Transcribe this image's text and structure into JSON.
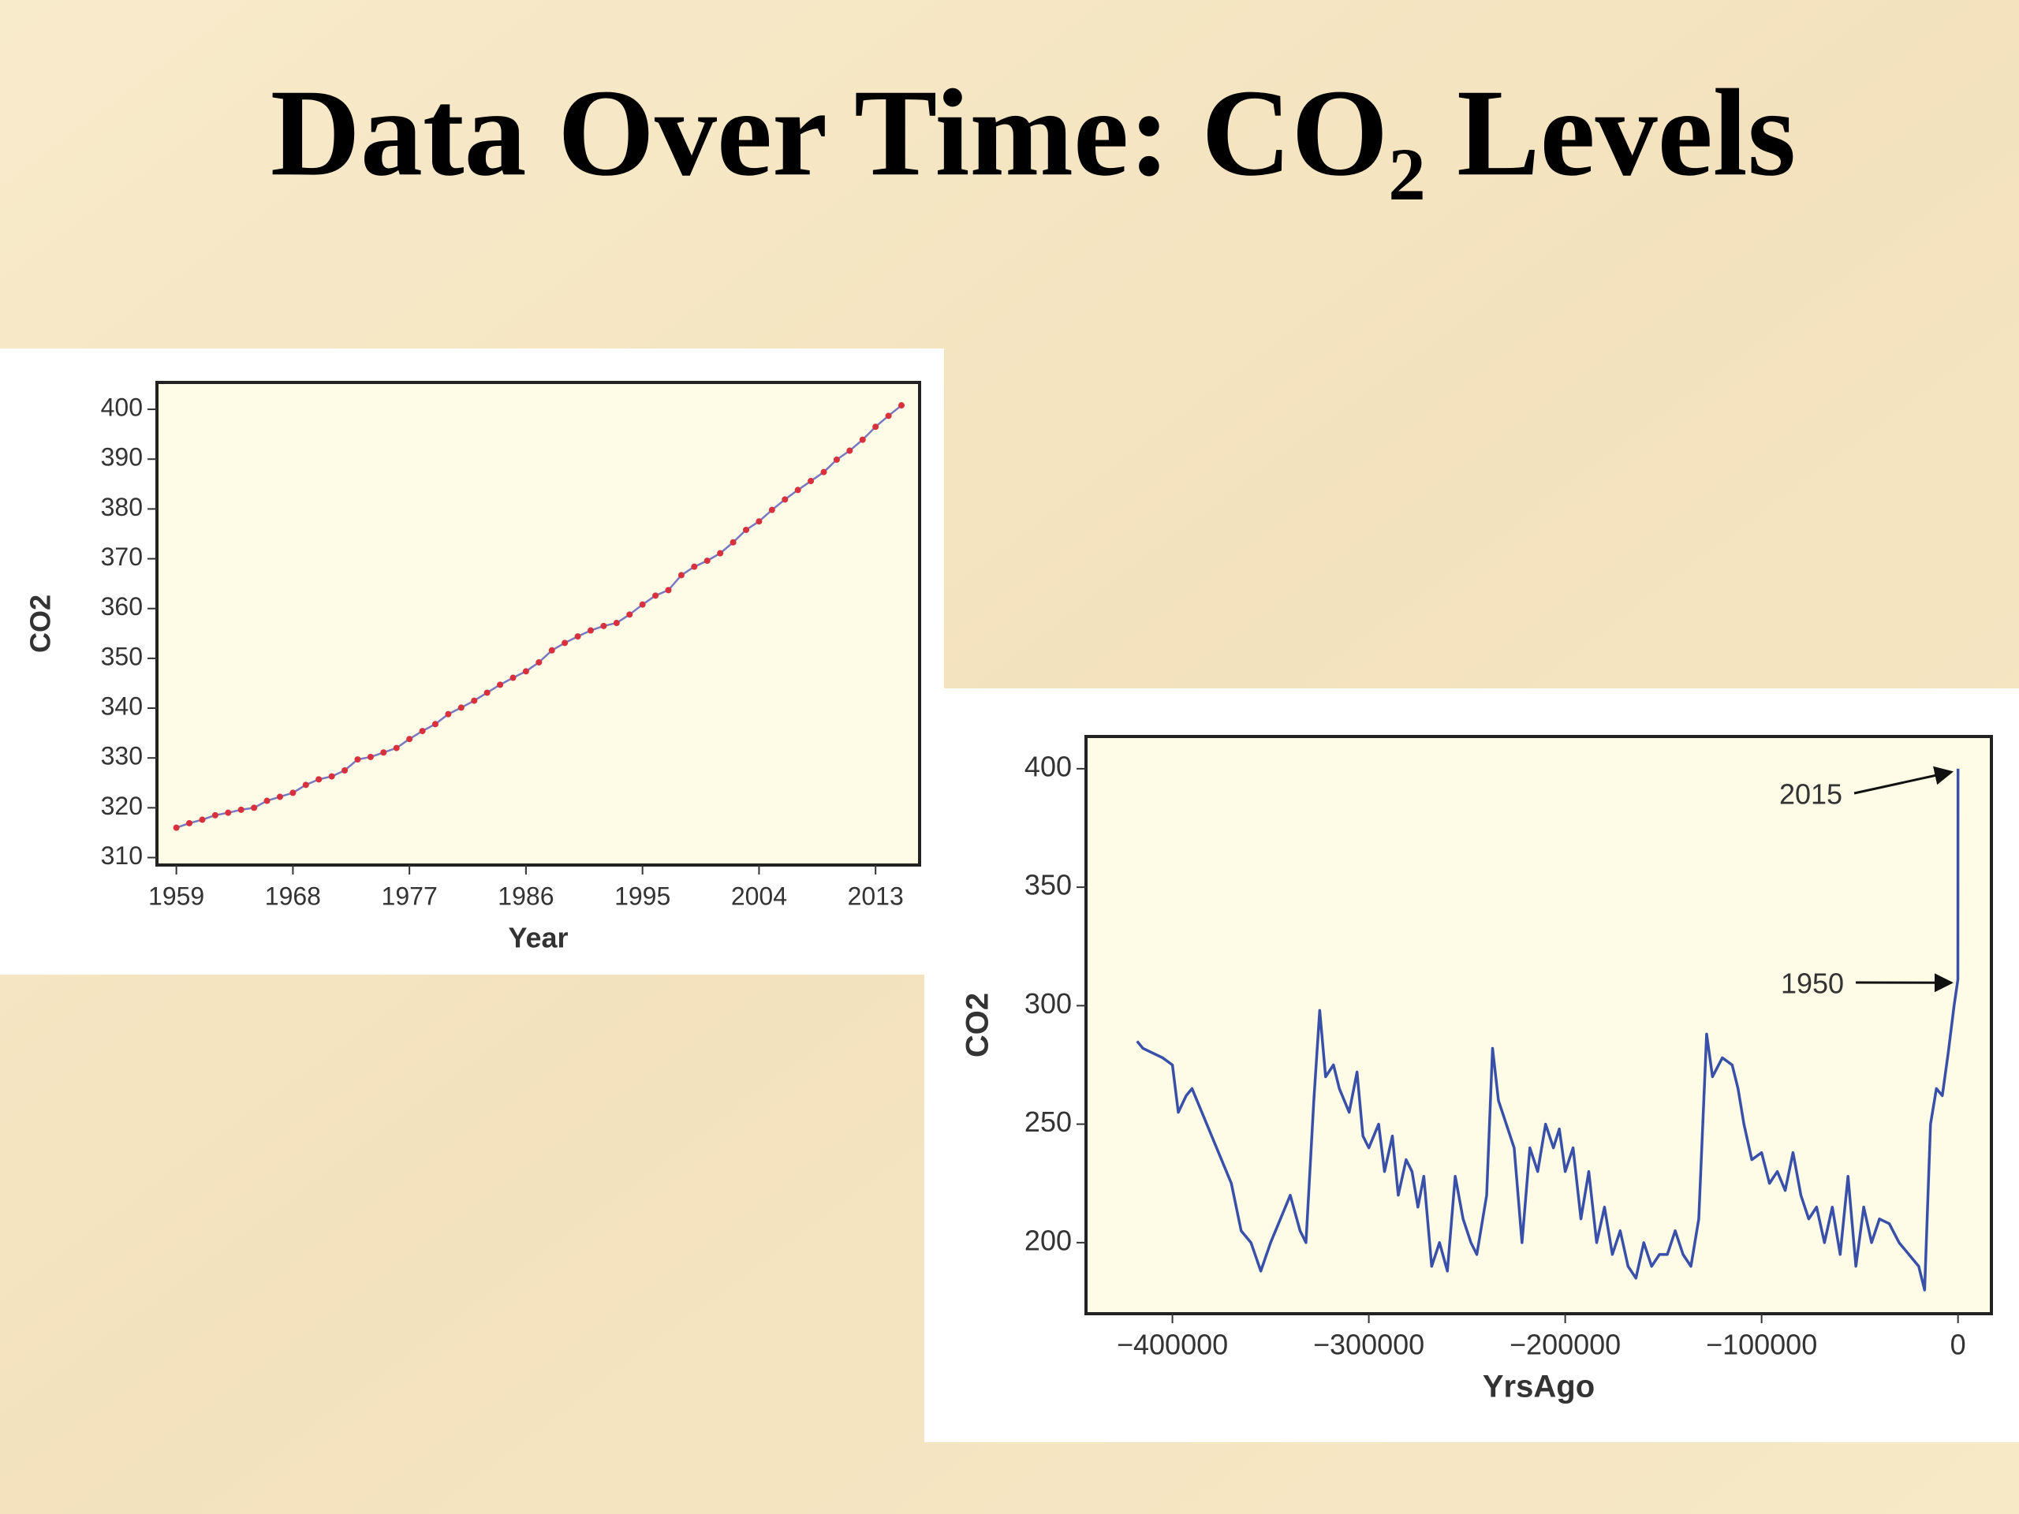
{
  "slide_title": "Data Over Time:  CO₂ Levels",
  "chart_data": [
    {
      "type": "line",
      "x_label": "Year",
      "y_label": "CO2",
      "x": [
        1959,
        1960,
        1961,
        1962,
        1963,
        1964,
        1965,
        1966,
        1967,
        1968,
        1969,
        1970,
        1971,
        1972,
        1973,
        1974,
        1975,
        1976,
        1977,
        1978,
        1979,
        1980,
        1981,
        1982,
        1983,
        1984,
        1985,
        1986,
        1987,
        1988,
        1989,
        1990,
        1991,
        1992,
        1993,
        1994,
        1995,
        1996,
        1997,
        1998,
        1999,
        2000,
        2001,
        2002,
        2003,
        2004,
        2005,
        2006,
        2007,
        2008,
        2009,
        2010,
        2011,
        2012,
        2013,
        2014,
        2015
      ],
      "values": [
        316.0,
        316.9,
        317.6,
        318.5,
        319.0,
        319.6,
        320.0,
        321.4,
        322.2,
        323.0,
        324.6,
        325.7,
        326.3,
        327.5,
        329.7,
        330.2,
        331.1,
        332.0,
        333.8,
        335.4,
        336.8,
        338.8,
        340.1,
        341.5,
        343.1,
        344.7,
        346.1,
        347.4,
        349.2,
        351.6,
        353.1,
        354.4,
        355.6,
        356.5,
        357.1,
        358.8,
        360.8,
        362.6,
        363.7,
        366.7,
        368.4,
        369.6,
        371.1,
        373.3,
        375.8,
        377.5,
        379.8,
        381.9,
        383.8,
        385.6,
        387.4,
        389.9,
        391.7,
        393.9,
        396.5,
        398.7,
        400.8
      ],
      "color": "#7a78c0",
      "marker_color": "#d8303c",
      "xlim": [
        1957.5,
        2016.4
      ],
      "ylim": [
        308.5,
        405.4
      ],
      "xticks": [
        1959,
        1968,
        1977,
        1986,
        1995,
        2004,
        2013
      ],
      "yticks": [
        310,
        320,
        330,
        340,
        350,
        360,
        370,
        380,
        390,
        400
      ]
    },
    {
      "type": "line",
      "x_label": "YrsAgo",
      "y_label": "CO2",
      "x": [
        -418000,
        -415000,
        -410000,
        -405000,
        -400000,
        -397000,
        -393000,
        -390000,
        -385000,
        -380000,
        -375000,
        -370000,
        -365000,
        -360000,
        -355000,
        -350000,
        -345000,
        -340000,
        -335000,
        -332000,
        -328000,
        -325000,
        -322000,
        -318000,
        -315000,
        -310000,
        -306000,
        -303000,
        -300000,
        -295000,
        -292000,
        -288000,
        -285000,
        -281000,
        -278000,
        -275000,
        -272000,
        -268000,
        -264000,
        -260000,
        -256000,
        -252000,
        -248000,
        -245000,
        -240000,
        -237000,
        -234000,
        -230000,
        -226000,
        -222000,
        -218000,
        -214000,
        -210000,
        -206000,
        -203000,
        -200000,
        -196000,
        -192000,
        -188000,
        -184000,
        -180000,
        -176000,
        -172000,
        -168000,
        -164000,
        -160000,
        -156000,
        -152000,
        -148000,
        -144000,
        -140000,
        -136000,
        -132000,
        -128000,
        -125000,
        -120000,
        -115000,
        -112000,
        -109000,
        -105000,
        -100000,
        -96000,
        -92000,
        -88000,
        -84000,
        -80000,
        -76000,
        -72000,
        -68000,
        -64000,
        -60000,
        -56000,
        -52000,
        -48000,
        -44000,
        -40000,
        -35000,
        -30000,
        -25000,
        -20000,
        -17000,
        -14000,
        -11000,
        -8000,
        -5000,
        -2000,
        -65,
        0
      ],
      "values": [
        285,
        282,
        280,
        278,
        275,
        255,
        262,
        265,
        255,
        245,
        235,
        225,
        205,
        200,
        188,
        200,
        210,
        220,
        205,
        200,
        260,
        298,
        270,
        275,
        265,
        255,
        272,
        245,
        240,
        250,
        230,
        245,
        220,
        235,
        230,
        215,
        228,
        190,
        200,
        188,
        228,
        210,
        200,
        195,
        220,
        282,
        260,
        250,
        240,
        200,
        240,
        230,
        250,
        240,
        248,
        230,
        240,
        210,
        230,
        200,
        215,
        195,
        205,
        190,
        185,
        200,
        190,
        195,
        195,
        205,
        195,
        190,
        210,
        288,
        270,
        278,
        275,
        265,
        250,
        235,
        238,
        225,
        230,
        222,
        238,
        220,
        210,
        215,
        200,
        215,
        195,
        228,
        190,
        215,
        200,
        210,
        208,
        200,
        195,
        190,
        180,
        250,
        265,
        262,
        280,
        300,
        311,
        400
      ],
      "color": "#3850a8",
      "xlim": [
        -444000,
        17000
      ],
      "ylim": [
        170,
        413.6
      ],
      "xticks": [
        {
          "value": -400000,
          "label": "−400000"
        },
        {
          "value": -300000,
          "label": "−300000"
        },
        {
          "value": -200000,
          "label": "−200000"
        },
        {
          "value": -100000,
          "label": "−100000"
        },
        0
      ],
      "yticks": [
        200,
        250,
        300,
        350,
        400
      ],
      "annotations": [
        "2015",
        "1950"
      ]
    }
  ]
}
